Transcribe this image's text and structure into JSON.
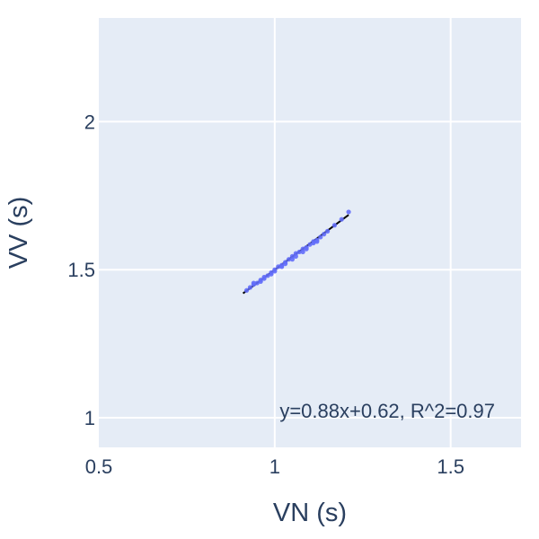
{
  "chart_data": {
    "type": "scatter",
    "title": "",
    "xlabel": "VN (s)",
    "ylabel": "VV (s)",
    "xlim": [
      0.5,
      1.7
    ],
    "ylim": [
      0.9,
      2.35
    ],
    "x_ticks": [
      0.5,
      1,
      1.5
    ],
    "y_ticks": [
      1,
      1.5,
      2
    ],
    "x_tick_labels": [
      "0.5",
      "1",
      "1.5"
    ],
    "y_tick_labels": [
      "1",
      "1.5",
      "2"
    ],
    "grid": true,
    "background_color": "#e5ecf6",
    "grid_color": "#ffffff",
    "point_color": "#636efa",
    "fit_line_color": "#000000",
    "series": [
      {
        "type": "scatter",
        "x": [
          0.92,
          0.93,
          0.94,
          0.95,
          0.96,
          0.97,
          0.98,
          0.99,
          1.0,
          1.01,
          1.02,
          1.03,
          1.04,
          1.05,
          1.06,
          1.07,
          1.08,
          1.09,
          1.1,
          1.11,
          1.12,
          1.13,
          1.14,
          1.15,
          1.17,
          1.19,
          1.21,
          0.94,
          0.97,
          1.0,
          1.03,
          1.06,
          1.09,
          1.12,
          0.96,
          0.99,
          1.02,
          1.05,
          1.08,
          1.11
        ],
        "y": [
          1.43,
          1.44,
          1.45,
          1.455,
          1.46,
          1.475,
          1.48,
          1.49,
          1.5,
          1.51,
          1.515,
          1.525,
          1.535,
          1.545,
          1.555,
          1.56,
          1.57,
          1.575,
          1.585,
          1.595,
          1.6,
          1.61,
          1.62,
          1.63,
          1.65,
          1.67,
          1.695,
          1.455,
          1.47,
          1.495,
          1.52,
          1.545,
          1.57,
          1.595,
          1.465,
          1.485,
          1.51,
          1.535,
          1.56,
          1.59
        ]
      },
      {
        "type": "line",
        "x": [
          0.91,
          1.21
        ],
        "y": [
          1.42,
          1.685
        ]
      }
    ],
    "annotation": "y=0.88x+0.62,  R^2=0.97"
  }
}
